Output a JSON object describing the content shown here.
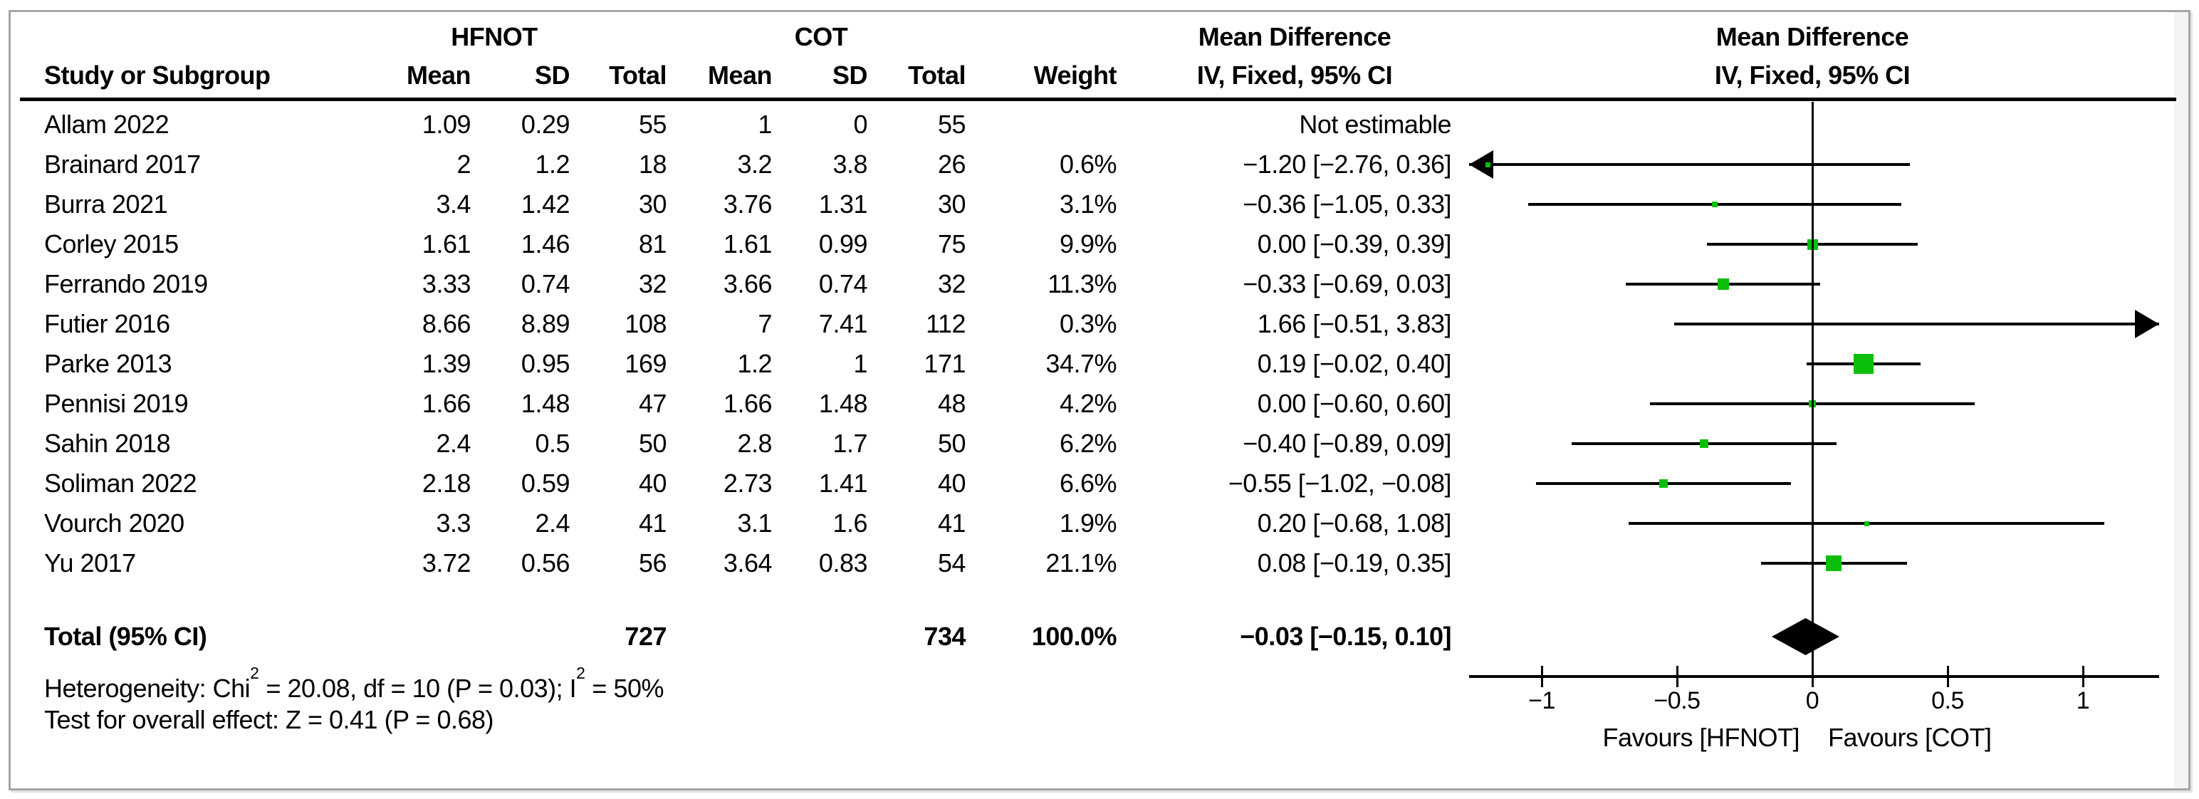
{
  "colors": {
    "marker_green": "#0abf0a",
    "line_black": "#000000",
    "frame_gray": "#a6a6a6"
  },
  "header": {
    "group1": "HFNOT",
    "group2": "COT",
    "effect": "Mean Difference",
    "method": "IV, Fixed, 95% CI",
    "col_study": "Study or Subgroup",
    "col_mean": "Mean",
    "col_sd": "SD",
    "col_total": "Total",
    "col_weight": "Weight"
  },
  "footer": {
    "het_prefix": "Heterogeneity: Chi",
    "sup": "2",
    "het_mid": " = 20.08, df = 10 (P = 0.03); I",
    "het_suffix": " = 50%",
    "test": "Test for overall effect: Z = 0.41 (P = 0.68)"
  },
  "chart_data": {
    "type": "forest",
    "effect_measure": "Mean Difference",
    "model": "IV, Fixed, 95% CI",
    "axis": {
      "min": -1.26,
      "max": 1.28,
      "ticks": [
        {
          "v": -1,
          "label": "−1"
        },
        {
          "v": -0.5,
          "label": "−0.5"
        },
        {
          "v": 0,
          "label": "0"
        },
        {
          "v": 0.5,
          "label": "0.5"
        },
        {
          "v": 1,
          "label": "1"
        }
      ],
      "favours_left": "Favours [HFNOT]",
      "favours_right": "Favours [COT]"
    },
    "studies": [
      {
        "name": "Allam 2022",
        "e_mean": "1.09",
        "e_sd": "0.29",
        "e_total": "55",
        "c_mean": "1",
        "c_sd": "0",
        "c_total": "55",
        "weight": "",
        "md_text": "Not estimable",
        "md": null,
        "lo": null,
        "hi": null
      },
      {
        "name": "Brainard 2017",
        "e_mean": "2",
        "e_sd": "1.2",
        "e_total": "18",
        "c_mean": "3.2",
        "c_sd": "3.8",
        "c_total": "26",
        "weight": "0.6%",
        "md_text": "−1.20 [−2.76, 0.36]",
        "md": -1.2,
        "lo": -2.76,
        "hi": 0.36
      },
      {
        "name": "Burra 2021",
        "e_mean": "3.4",
        "e_sd": "1.42",
        "e_total": "30",
        "c_mean": "3.76",
        "c_sd": "1.31",
        "c_total": "30",
        "weight": "3.1%",
        "md_text": "−0.36 [−1.05, 0.33]",
        "md": -0.36,
        "lo": -1.05,
        "hi": 0.33
      },
      {
        "name": "Corley 2015",
        "e_mean": "1.61",
        "e_sd": "1.46",
        "e_total": "81",
        "c_mean": "1.61",
        "c_sd": "0.99",
        "c_total": "75",
        "weight": "9.9%",
        "md_text": "0.00 [−0.39, 0.39]",
        "md": 0.0,
        "lo": -0.39,
        "hi": 0.39
      },
      {
        "name": "Ferrando 2019",
        "e_mean": "3.33",
        "e_sd": "0.74",
        "e_total": "32",
        "c_mean": "3.66",
        "c_sd": "0.74",
        "c_total": "32",
        "weight": "11.3%",
        "md_text": "−0.33 [−0.69, 0.03]",
        "md": -0.33,
        "lo": -0.69,
        "hi": 0.03
      },
      {
        "name": "Futier 2016",
        "e_mean": "8.66",
        "e_sd": "8.89",
        "e_total": "108",
        "c_mean": "7",
        "c_sd": "7.41",
        "c_total": "112",
        "weight": "0.3%",
        "md_text": "1.66 [−0.51, 3.83]",
        "md": 1.66,
        "lo": -0.51,
        "hi": 3.83
      },
      {
        "name": "Parke 2013",
        "e_mean": "1.39",
        "e_sd": "0.95",
        "e_total": "169",
        "c_mean": "1.2",
        "c_sd": "1",
        "c_total": "171",
        "weight": "34.7%",
        "md_text": "0.19 [−0.02, 0.40]",
        "md": 0.19,
        "lo": -0.02,
        "hi": 0.4
      },
      {
        "name": "Pennisi 2019",
        "e_mean": "1.66",
        "e_sd": "1.48",
        "e_total": "47",
        "c_mean": "1.66",
        "c_sd": "1.48",
        "c_total": "48",
        "weight": "4.2%",
        "md_text": "0.00 [−0.60, 0.60]",
        "md": 0.0,
        "lo": -0.6,
        "hi": 0.6
      },
      {
        "name": "Sahin 2018",
        "e_mean": "2.4",
        "e_sd": "0.5",
        "e_total": "50",
        "c_mean": "2.8",
        "c_sd": "1.7",
        "c_total": "50",
        "weight": "6.2%",
        "md_text": "−0.40 [−0.89, 0.09]",
        "md": -0.4,
        "lo": -0.89,
        "hi": 0.09
      },
      {
        "name": "Soliman 2022",
        "e_mean": "2.18",
        "e_sd": "0.59",
        "e_total": "40",
        "c_mean": "2.73",
        "c_sd": "1.41",
        "c_total": "40",
        "weight": "6.6%",
        "md_text": "−0.55 [−1.02, −0.08]",
        "md": -0.55,
        "lo": -1.02,
        "hi": -0.08
      },
      {
        "name": "Vourch 2020",
        "e_mean": "3.3",
        "e_sd": "2.4",
        "e_total": "41",
        "c_mean": "3.1",
        "c_sd": "1.6",
        "c_total": "41",
        "weight": "1.9%",
        "md_text": "0.20 [−0.68, 1.08]",
        "md": 0.2,
        "lo": -0.68,
        "hi": 1.08
      },
      {
        "name": "Yu 2017",
        "e_mean": "3.72",
        "e_sd": "0.56",
        "e_total": "56",
        "c_mean": "3.64",
        "c_sd": "0.83",
        "c_total": "54",
        "weight": "21.1%",
        "md_text": "0.08 [−0.19, 0.35]",
        "md": 0.08,
        "lo": -0.19,
        "hi": 0.35
      }
    ],
    "total": {
      "label": "Total (95% CI)",
      "e_total": "727",
      "c_total": "734",
      "weight": "100.0%",
      "md_text": "−0.03 [−0.15, 0.10]",
      "md": -0.03,
      "lo": -0.15,
      "hi": 0.1
    }
  }
}
